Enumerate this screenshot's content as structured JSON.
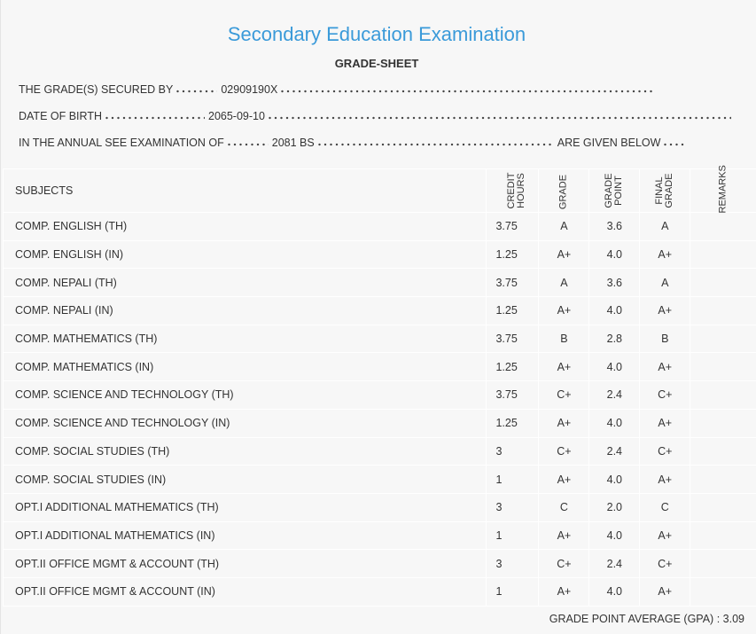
{
  "header": {
    "title": "Secondary Education Examination",
    "subtitle": "GRADE-SHEET"
  },
  "info": [
    {
      "label": "THE GRADE(S) SECURED BY",
      "value": "02909190X"
    },
    {
      "label": "DATE OF BIRTH",
      "value": "2065-09-10"
    },
    {
      "label": "IN THE ANNUAL SEE EXAMINATION OF",
      "value": "2081 BS",
      "suffix": "ARE GIVEN BELOW"
    }
  ],
  "table": {
    "columns": [
      "SUBJECTS",
      "CREDIT HOURS",
      "GRADE",
      "GRADE POINT",
      "FINAL GRADE",
      "REMARKS"
    ],
    "rows": [
      [
        "COMP. ENGLISH (TH)",
        "3.75",
        "A",
        "3.6",
        "A"
      ],
      [
        "COMP. ENGLISH (IN)",
        "1.25",
        "A+",
        "4.0",
        "A+"
      ],
      [
        "COMP. NEPALI (TH)",
        "3.75",
        "A",
        "3.6",
        "A"
      ],
      [
        "COMP. NEPALI (IN)",
        "1.25",
        "A+",
        "4.0",
        "A+"
      ],
      [
        "COMP. MATHEMATICS (TH)",
        "3.75",
        "B",
        "2.8",
        "B"
      ],
      [
        "COMP. MATHEMATICS (IN)",
        "1.25",
        "A+",
        "4.0",
        "A+"
      ],
      [
        "COMP. SCIENCE AND TECHNOLOGY (TH)",
        "3.75",
        "C+",
        "2.4",
        "C+"
      ],
      [
        "COMP. SCIENCE AND TECHNOLOGY (IN)",
        "1.25",
        "A+",
        "4.0",
        "A+"
      ],
      [
        "COMP. SOCIAL STUDIES (TH)",
        "3",
        "C+",
        "2.4",
        "C+"
      ],
      [
        "COMP. SOCIAL STUDIES (IN)",
        "1",
        "A+",
        "4.0",
        "A+"
      ],
      [
        "OPT.I ADDITIONAL MATHEMATICS (TH)",
        "3",
        "C",
        "2.0",
        "C"
      ],
      [
        "OPT.I ADDITIONAL MATHEMATICS (IN)",
        "1",
        "A+",
        "4.0",
        "A+"
      ],
      [
        "OPT.II OFFICE MGMT & ACCOUNT (TH)",
        "3",
        "C+",
        "2.4",
        "C+"
      ],
      [
        "OPT.II OFFICE MGMT & ACCOUNT (IN)",
        "1",
        "A+",
        "4.0",
        "A+"
      ]
    ]
  },
  "footer": {
    "label": "GRADE POINT AVERAGE (GPA) :",
    "value": "3.09"
  }
}
